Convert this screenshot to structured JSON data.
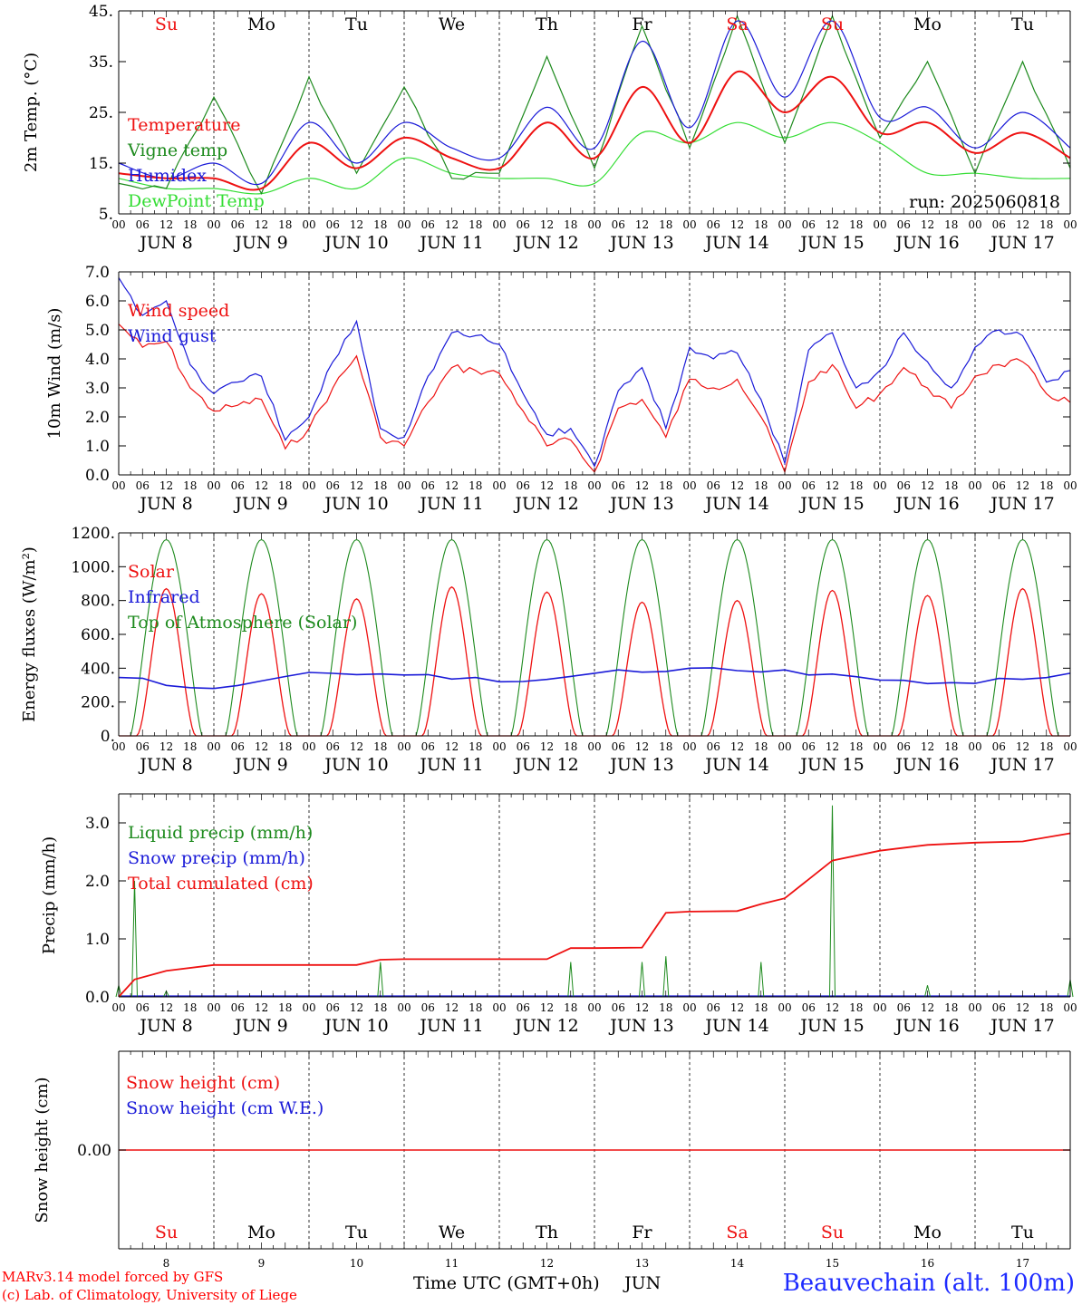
{
  "colors": {
    "red": "#ee1111",
    "green": "#1d8a1d",
    "blue": "#1a1ad8",
    "lightgreen": "#33dd33",
    "axis": "#000000",
    "weekend": "#ee1111"
  },
  "days": {
    "week": [
      "Su",
      "Mo",
      "Tu",
      "We",
      "Th",
      "Fr",
      "Sa",
      "Su",
      "Mo",
      "Tu"
    ],
    "weekend_flags": [
      true,
      false,
      false,
      false,
      false,
      false,
      true,
      true,
      false,
      false
    ],
    "dates": [
      "JUN  8",
      "JUN  9",
      "JUN 10",
      "JUN 11",
      "JUN 12",
      "JUN 13",
      "JUN 14",
      "JUN 15",
      "JUN 16",
      "JUN 17"
    ],
    "daynums": [
      "8",
      "9",
      "10",
      "11",
      "12",
      "13",
      "14",
      "15",
      "16",
      "17"
    ],
    "hour_labels": [
      "00",
      "06",
      "12",
      "18"
    ],
    "end_label": "00"
  },
  "chart_data": [
    {
      "type": "line",
      "ylabel": "2m Temp. (°C)",
      "ylim": [
        5,
        45
      ],
      "yticks": [
        "5.",
        "15.",
        "25.",
        "35.",
        "45."
      ],
      "run_text": "run: 2025060818",
      "legend": [
        "Temperature",
        "Vigne temp",
        "Humidex",
        "DewPoint Temp"
      ],
      "x_hours": [
        0,
        12,
        24,
        36,
        48,
        60,
        72,
        84,
        96,
        108,
        120,
        132,
        144,
        156,
        168,
        180,
        192,
        204,
        216,
        228,
        240
      ],
      "series": [
        {
          "name": "Temperature",
          "color": "red",
          "values": [
            13,
            12,
            12,
            10,
            19,
            14,
            20,
            16,
            14,
            23,
            16,
            30,
            19,
            33,
            25,
            32,
            21,
            23,
            17,
            21,
            16
          ]
        },
        {
          "name": "Vigne temp",
          "color": "green",
          "values": [
            11,
            10,
            28,
            9,
            32,
            13,
            30,
            12,
            13,
            36,
            14,
            42,
            18,
            44,
            19,
            44,
            20,
            35,
            13,
            35,
            14
          ]
        },
        {
          "name": "Humidex",
          "color": "blue",
          "values": [
            15,
            12,
            15,
            11,
            23,
            15,
            23,
            18,
            16,
            26,
            18,
            39,
            22,
            43,
            28,
            43,
            24,
            26,
            18,
            25,
            18
          ]
        },
        {
          "name": "DewPoint Temp",
          "color": "lightgreen",
          "values": [
            12,
            10,
            10,
            9,
            12,
            10,
            16,
            13,
            12,
            12,
            11,
            21,
            19,
            23,
            20,
            23,
            19,
            13,
            13,
            12,
            12
          ]
        }
      ]
    },
    {
      "type": "line",
      "ylabel": "10m Wind (m/s)",
      "ylim": [
        0,
        7
      ],
      "yticks": [
        "0.0",
        "1.0",
        "2.0",
        "3.0",
        "4.0",
        "5.0",
        "6.0",
        "7.0"
      ],
      "ref_line": 5,
      "legend": [
        "Wind speed",
        "Wind gust"
      ],
      "x_hours": [
        0,
        6,
        12,
        18,
        24,
        30,
        36,
        42,
        48,
        54,
        60,
        66,
        72,
        78,
        84,
        90,
        96,
        102,
        108,
        114,
        120,
        126,
        132,
        138,
        144,
        150,
        156,
        162,
        168,
        174,
        180,
        186,
        192,
        198,
        204,
        210,
        216,
        222,
        228,
        234,
        240
      ],
      "series": [
        {
          "name": "Wind speed",
          "color": "red",
          "values": [
            5.2,
            4.4,
            4.6,
            3.0,
            2.2,
            2.4,
            2.6,
            0.9,
            1.6,
            3.0,
            4.1,
            1.3,
            1.0,
            2.5,
            3.7,
            3.6,
            3.5,
            2.2,
            1.0,
            1.2,
            0.1,
            2.3,
            2.6,
            1.3,
            3.3,
            3.0,
            3.3,
            2.0,
            0.1,
            3.2,
            3.8,
            2.3,
            2.8,
            3.7,
            3.0,
            2.3,
            3.4,
            3.8,
            3.9,
            2.8,
            2.5
          ]
        },
        {
          "name": "Wind gust",
          "color": "blue",
          "values": [
            6.8,
            5.5,
            6.0,
            3.8,
            2.8,
            3.2,
            3.4,
            1.2,
            2.0,
            3.9,
            5.3,
            1.6,
            1.3,
            3.4,
            4.9,
            4.8,
            4.5,
            2.8,
            1.4,
            1.6,
            0.3,
            2.9,
            3.7,
            1.6,
            4.4,
            4.0,
            4.2,
            2.6,
            0.4,
            4.3,
            4.9,
            3.0,
            3.6,
            4.9,
            3.9,
            3.0,
            4.4,
            5.0,
            4.8,
            3.2,
            3.6
          ]
        }
      ]
    },
    {
      "type": "line",
      "ylabel": "Energy fluxes (W/m²)",
      "ylim": [
        0,
        1200
      ],
      "yticks": [
        "0.",
        "200.",
        "400.",
        "600.",
        "800.",
        "1000.",
        "1200."
      ],
      "legend": [
        "Solar",
        "Infrared",
        "Top of Atmosphere (Solar)"
      ],
      "toa_peak": 1160,
      "solar_peaks": [
        870,
        840,
        810,
        880,
        850,
        790,
        800,
        860,
        830,
        870
      ],
      "x_hours": [
        0,
        24,
        48,
        72,
        96,
        120,
        144,
        168,
        192,
        216,
        240
      ],
      "series": [
        {
          "name": "Infrared",
          "color": "blue",
          "values": [
            345,
            280,
            375,
            360,
            320,
            370,
            400,
            390,
            330,
            310,
            370
          ]
        }
      ]
    },
    {
      "type": "line",
      "ylabel": "Precip (mm/h)",
      "ylim": [
        0,
        3.5
      ],
      "yticks": [
        "0.0",
        "1.0",
        "2.0",
        "3.0"
      ],
      "legend": [
        "Liquid precip (mm/h)",
        "Snow precip (mm/h)",
        "Total cumulated (cm)"
      ],
      "x_hours": [
        0,
        4,
        12,
        24,
        36,
        48,
        60,
        66,
        72,
        84,
        96,
        108,
        114,
        120,
        132,
        138,
        144,
        156,
        162,
        168,
        180,
        192,
        204,
        216,
        228,
        240
      ],
      "series": [
        {
          "name": "Total cumulated (cm)",
          "color": "red",
          "values": [
            0.0,
            0.3,
            0.45,
            0.55,
            0.55,
            0.55,
            0.55,
            0.64,
            0.65,
            0.65,
            0.65,
            0.65,
            0.84,
            0.84,
            0.85,
            1.45,
            1.47,
            1.48,
            1.6,
            1.7,
            2.35,
            2.52,
            2.62,
            2.66,
            2.68,
            2.82
          ]
        },
        {
          "name": "Liquid precip (mm/h)",
          "color": "green",
          "values": [
            0.2,
            2.0,
            0.1,
            0.0,
            0.0,
            0.0,
            0.0,
            0.6,
            0.0,
            0.0,
            0.0,
            0.0,
            0.6,
            0.0,
            0.6,
            0.7,
            0.0,
            0.0,
            0.6,
            0.0,
            3.3,
            0.0,
            0.2,
            0.0,
            0.0,
            0.3
          ]
        }
      ]
    },
    {
      "type": "line",
      "ylabel": "Snow height (cm)",
      "ytick": "0.00",
      "legend": [
        "Snow height (cm)",
        "Snow height (cm W.E.)"
      ],
      "xlabel": "Time UTC (GMT+0h)",
      "month": "JUN",
      "series": [
        {
          "name": "Snow height (cm)",
          "color": "red",
          "values": [
            0,
            0
          ]
        }
      ]
    }
  ],
  "footer": {
    "model": "MARv3.14 model forced by GFS",
    "lab": "(c) Lab. of Climatology, University of Liege",
    "station": "Beauvechain (alt. 100m)"
  }
}
